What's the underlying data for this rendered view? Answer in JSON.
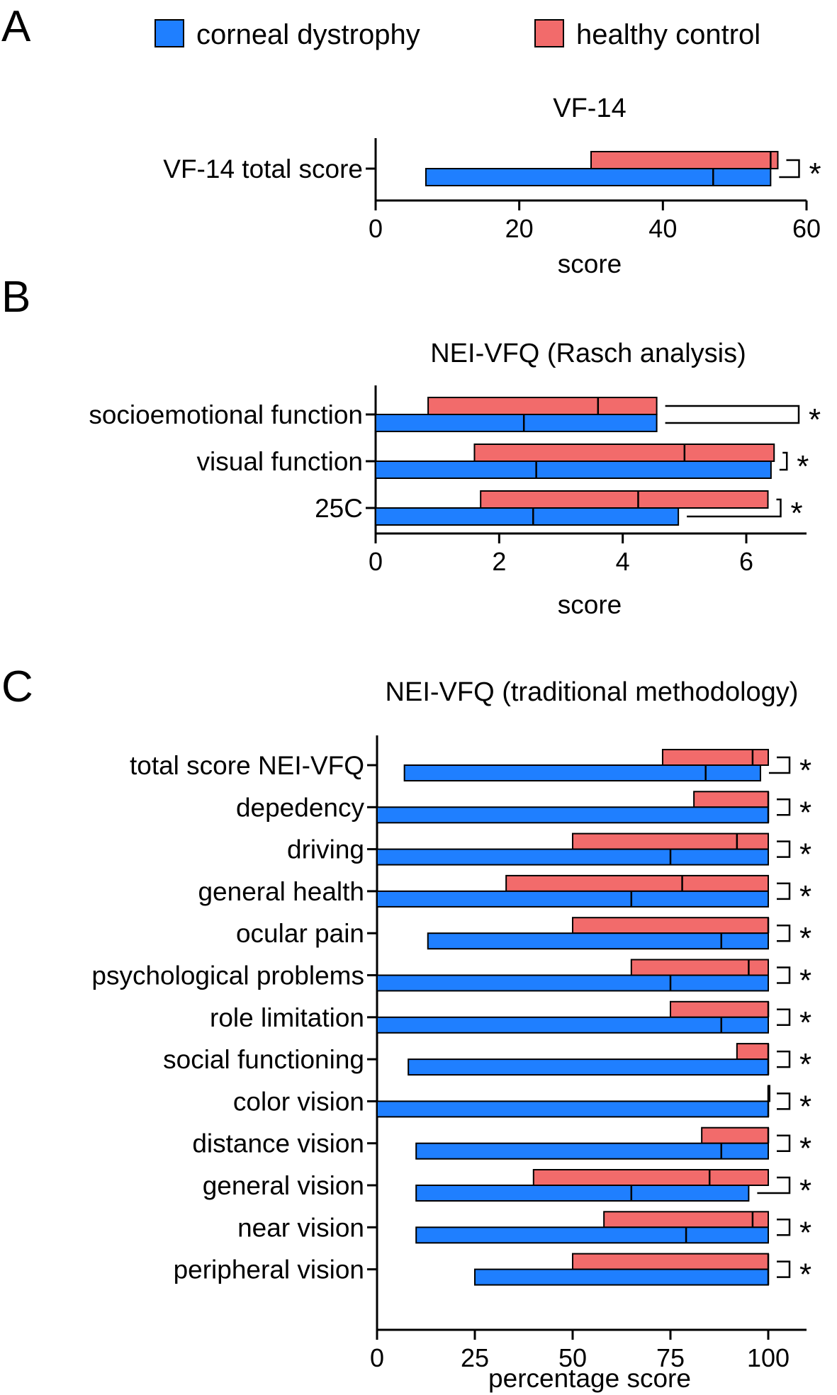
{
  "panel_labels": [
    "A",
    "B",
    "C"
  ],
  "legend": [
    {
      "label": "corneal dystrophy",
      "color": "#1f7fff"
    },
    {
      "label": "healthy control",
      "color": "#f26b6b"
    }
  ],
  "colors": {
    "corneal_dystrophy": "#1f7fff",
    "healthy_control": "#f26b6b",
    "edge": "#000000"
  },
  "significance_marker": "*",
  "chart_data": [
    {
      "panel": "A",
      "type": "bar",
      "orientation": "horizontal",
      "bar_style": "floating range with median line",
      "title": "VF-14",
      "xlabel": "score",
      "xlim": [
        0,
        60
      ],
      "xticks": [
        0,
        20,
        40,
        60
      ],
      "categories": [
        "VF-14 total score"
      ],
      "series": [
        {
          "name": "corneal dystrophy",
          "ranges": [
            {
              "min": 7,
              "median": 47,
              "max": 55
            }
          ]
        },
        {
          "name": "healthy control",
          "ranges": [
            {
              "min": 30,
              "median": 55,
              "max": 56
            }
          ]
        }
      ],
      "significance": [
        "*"
      ]
    },
    {
      "panel": "B",
      "type": "bar",
      "orientation": "horizontal",
      "bar_style": "floating range with median line",
      "title": "NEI-VFQ (Rasch analysis)",
      "xlabel": "score",
      "xlim": [
        0,
        7
      ],
      "xticks": [
        0,
        2,
        4,
        6
      ],
      "categories": [
        "socioemotional function",
        "visual function",
        "25C"
      ],
      "series": [
        {
          "name": "corneal dystrophy",
          "ranges": [
            {
              "min": 0,
              "median": 2.4,
              "max": 4.55
            },
            {
              "min": 0,
              "median": 2.6,
              "max": 6.4
            },
            {
              "min": 0,
              "median": 2.55,
              "max": 4.9
            }
          ]
        },
        {
          "name": "healthy control",
          "ranges": [
            {
              "min": 0.85,
              "median": 3.6,
              "max": 4.55
            },
            {
              "min": 1.6,
              "median": 5.0,
              "max": 6.45
            },
            {
              "min": 1.7,
              "median": 4.25,
              "max": 6.35
            }
          ]
        }
      ],
      "significance": [
        "*",
        "*",
        "*"
      ]
    },
    {
      "panel": "C",
      "type": "bar",
      "orientation": "horizontal",
      "bar_style": "floating range with median line",
      "title": "NEI-VFQ (traditional methodology)",
      "xlabel": "percentage score",
      "xlim": [
        0,
        110
      ],
      "xticks": [
        0,
        25,
        50,
        75,
        100
      ],
      "categories": [
        "total score NEI-VFQ",
        "depedency",
        "driving",
        "general health",
        "ocular pain",
        "psychological problems",
        "role limitation",
        "social functioning",
        "color vision",
        "distance vision",
        "general vision",
        "near vision",
        "peripheral vision"
      ],
      "series": [
        {
          "name": "corneal dystrophy",
          "ranges": [
            {
              "min": 7,
              "median": 84,
              "max": 98
            },
            {
              "min": 0,
              "median": 100,
              "max": 100
            },
            {
              "min": 0,
              "median": 75,
              "max": 100
            },
            {
              "min": 0,
              "median": 65,
              "max": 100
            },
            {
              "min": 13,
              "median": 88,
              "max": 100
            },
            {
              "min": 0,
              "median": 75,
              "max": 100
            },
            {
              "min": 0,
              "median": 88,
              "max": 100
            },
            {
              "min": 8,
              "median": 100,
              "max": 100
            },
            {
              "min": 0,
              "median": 100,
              "max": 100
            },
            {
              "min": 10,
              "median": 88,
              "max": 100
            },
            {
              "min": 10,
              "median": 65,
              "max": 95
            },
            {
              "min": 10,
              "median": 79,
              "max": 100
            },
            {
              "min": 25,
              "median": 100,
              "max": 100
            }
          ]
        },
        {
          "name": "healthy control",
          "ranges": [
            {
              "min": 73,
              "median": 96,
              "max": 100
            },
            {
              "min": 81,
              "median": 100,
              "max": 100
            },
            {
              "min": 50,
              "median": 92,
              "max": 100
            },
            {
              "min": 33,
              "median": 78,
              "max": 100
            },
            {
              "min": 50,
              "median": 100,
              "max": 100
            },
            {
              "min": 65,
              "median": 95,
              "max": 100
            },
            {
              "min": 75,
              "median": 100,
              "max": 100
            },
            {
              "min": 92,
              "median": 100,
              "max": 100
            },
            {
              "min": 100,
              "median": 100,
              "max": 100
            },
            {
              "min": 83,
              "median": 100,
              "max": 100
            },
            {
              "min": 40,
              "median": 85,
              "max": 100
            },
            {
              "min": 58,
              "median": 96,
              "max": 100
            },
            {
              "min": 50,
              "median": 100,
              "max": 100
            }
          ]
        }
      ],
      "significance": [
        "*",
        "*",
        "*",
        "*",
        "*",
        "*",
        "*",
        "*",
        "*",
        "*",
        "*",
        "*",
        "*"
      ]
    }
  ]
}
